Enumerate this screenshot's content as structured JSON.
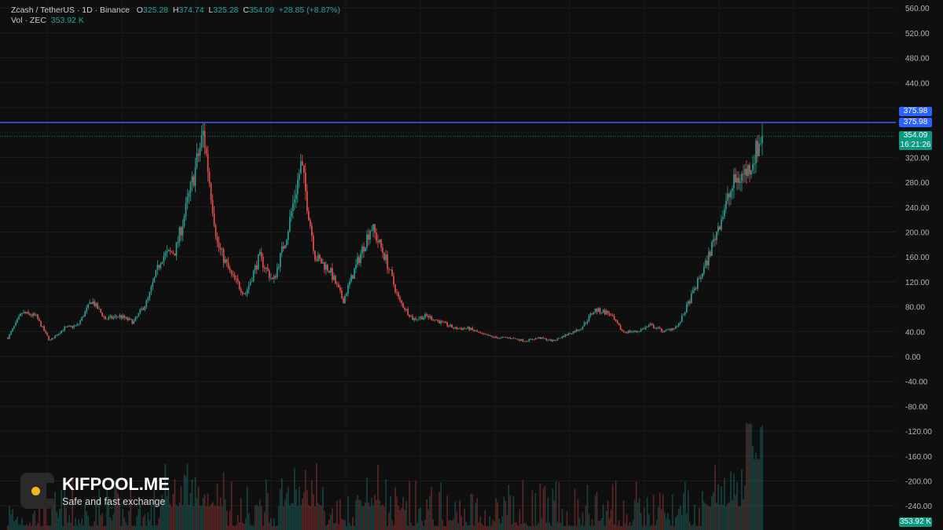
{
  "legend": {
    "symbol": "Zcash / TetherUS · 1D · Binance",
    "open_label": "O",
    "open": "325.28",
    "high_label": "H",
    "high": "374.74",
    "low_label": "L",
    "low": "325.28",
    "close_label": "C",
    "close": "354.09",
    "change": "+28.85 (+8.87%)",
    "vol_label": "Vol · ZEC",
    "vol": "353.92 K"
  },
  "price_tags": {
    "line_price_1": "375.98",
    "line_price_2": "375.98",
    "last_price": "354.09",
    "countdown": "16:21:26",
    "volume": "353.92 K"
  },
  "logo": {
    "title": "KIFPOOL.ME",
    "subtitle": "Safe and fast exchange"
  },
  "colors": {
    "up": "#26a69a",
    "down": "#ef5350",
    "horizontal_line": "#3d5afe",
    "background": "#0f0f0f"
  },
  "chart_data": {
    "type": "candlestick",
    "title": "",
    "xlabel": "",
    "ylabel": "",
    "ylim": [
      -280,
      570
    ],
    "y_ticks": [
      560,
      520,
      480,
      440,
      400,
      360,
      320,
      280,
      240,
      200,
      160,
      120,
      80,
      40,
      0,
      -40,
      -80,
      -120,
      -160,
      -200,
      -240,
      -280
    ],
    "grid": true,
    "horizontal_line": 375.98,
    "last_close": 354.09,
    "approx_close_path": [
      30,
      70,
      65,
      25,
      45,
      50,
      90,
      60,
      65,
      55,
      90,
      160,
      170,
      260,
      360,
      180,
      130,
      100,
      160,
      120,
      200,
      310,
      160,
      140,
      90,
      150,
      210,
      160,
      90,
      60,
      65,
      55,
      45,
      45,
      35,
      30,
      30,
      25,
      30,
      25,
      35,
      45,
      75,
      70,
      40,
      40,
      50,
      40,
      50,
      100,
      150,
      220,
      280,
      300,
      354
    ]
  }
}
